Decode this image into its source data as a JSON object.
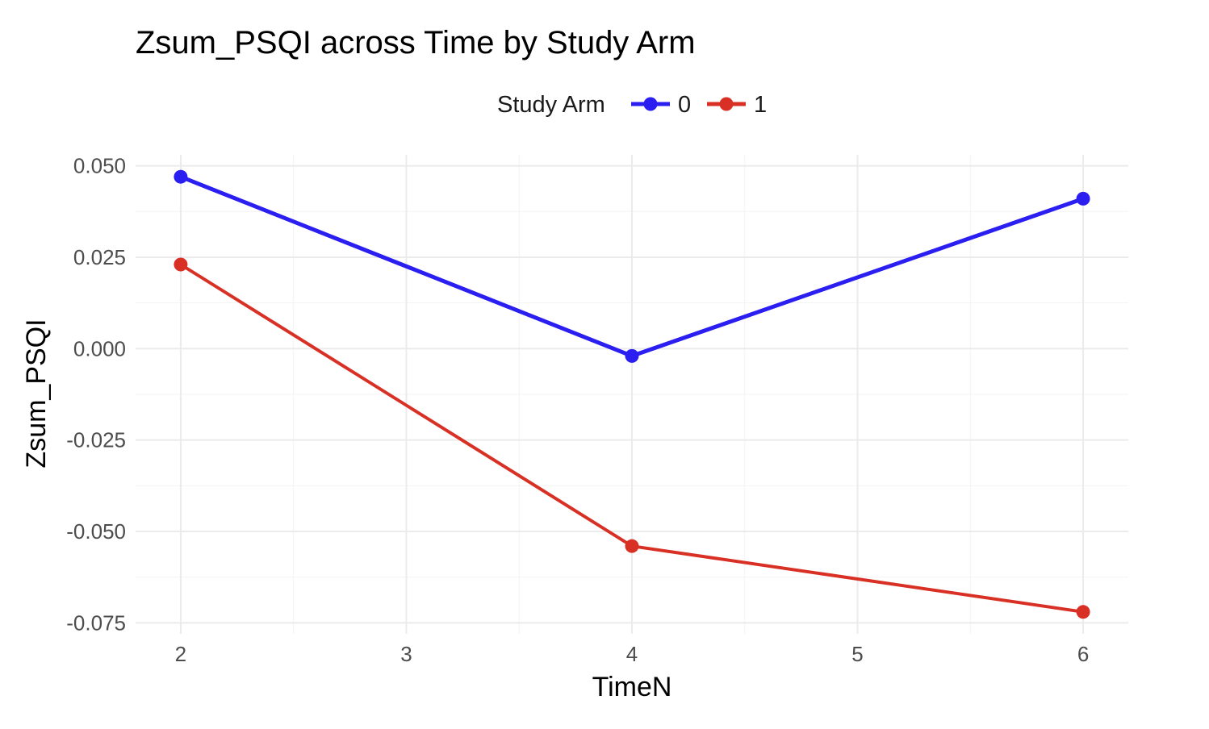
{
  "chart_data": {
    "type": "line",
    "title": "Zsum_PSQI across Time by Study Arm",
    "xlabel": "TimeN",
    "ylabel": "Zsum_PSQI",
    "legend": {
      "title": "Study Arm",
      "position": "top"
    },
    "x_ticks": [
      "2",
      "3",
      "4",
      "5",
      "6"
    ],
    "y_ticks": [
      "0.050",
      "0.025",
      "0.000",
      "-0.025",
      "-0.050",
      "-0.075"
    ],
    "xlim": [
      1.8,
      6.2
    ],
    "ylim": [
      -0.078,
      0.053
    ],
    "grid": true,
    "x": [
      2,
      4,
      6
    ],
    "series": [
      {
        "name": "0",
        "color": "#2a1ef0",
        "values": [
          0.047,
          -0.002,
          0.041
        ]
      },
      {
        "name": "1",
        "color": "#d93025",
        "values": [
          0.023,
          -0.054,
          -0.072
        ]
      }
    ]
  }
}
